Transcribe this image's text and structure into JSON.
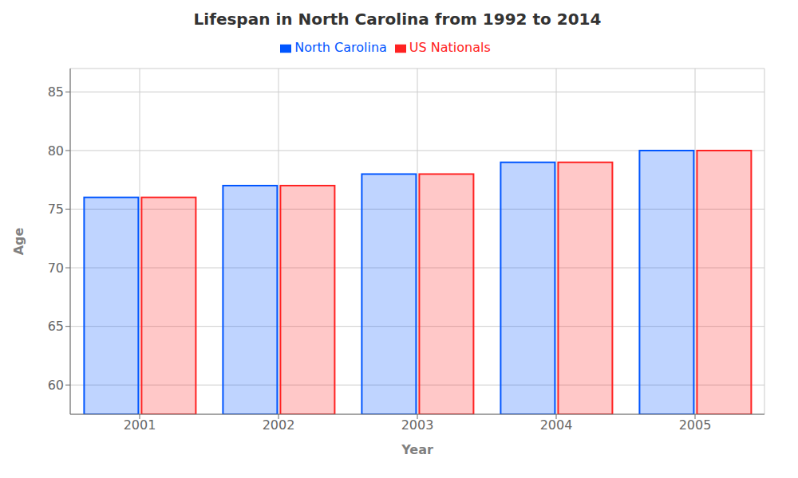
{
  "chart_data": {
    "type": "bar",
    "title": "Lifespan in North Carolina from 1992 to 2014",
    "xlabel": "Year",
    "ylabel": "Age",
    "categories": [
      "2001",
      "2002",
      "2003",
      "2004",
      "2005"
    ],
    "series": [
      {
        "name": "North Carolina",
        "color": "#0055ff",
        "values": [
          76,
          77,
          78,
          79,
          80
        ]
      },
      {
        "name": "US Nationals",
        "color": "#ff2222",
        "values": [
          76,
          77,
          78,
          79,
          80
        ]
      }
    ],
    "ylim": [
      57.5,
      87
    ],
    "yticks": [
      60,
      65,
      70,
      75,
      80,
      85
    ],
    "grid": true,
    "legend": "top"
  }
}
